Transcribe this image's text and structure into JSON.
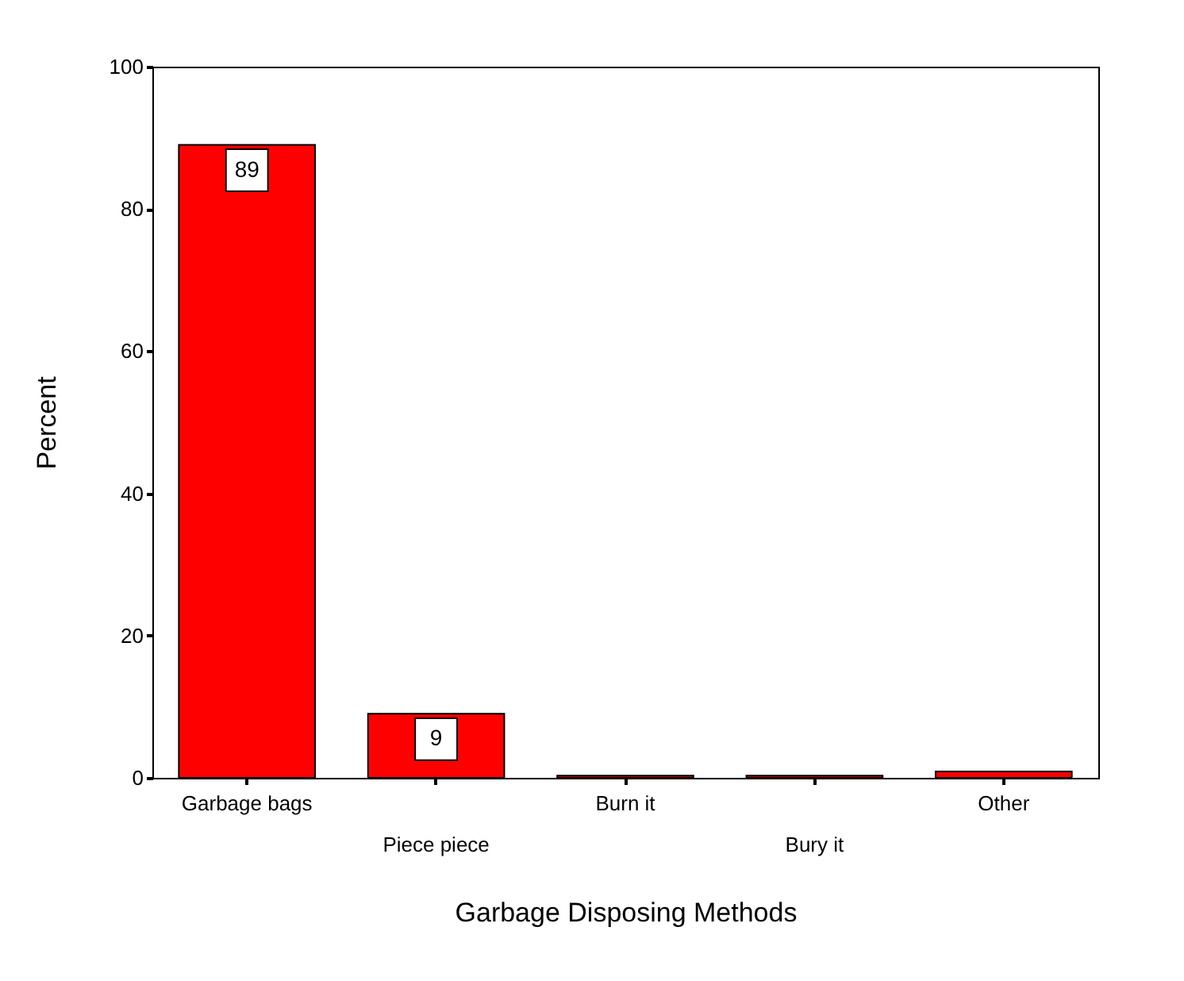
{
  "chart_data": {
    "type": "bar",
    "xlabel": "Garbage Disposing Methods",
    "ylabel": "Percent",
    "categories": [
      "Garbage bags",
      "Piece piece",
      "Burn it",
      "Bury it",
      "Other"
    ],
    "values": [
      89,
      9,
      0.3,
      0.3,
      0.9
    ],
    "value_labels": [
      "89",
      "9",
      null,
      null,
      null
    ],
    "color": "#ff0000",
    "ylim": [
      0,
      100
    ],
    "yticks": [
      0,
      20,
      40,
      60,
      80,
      100
    ],
    "grid": false
  }
}
